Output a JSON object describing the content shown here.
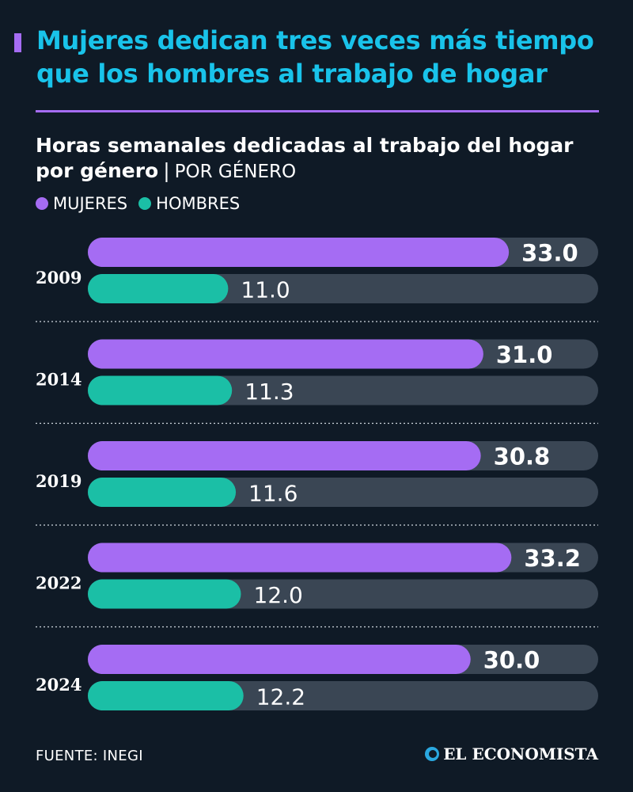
{
  "header": {
    "title": "Mujeres dedican tres veces más tiempo que los hombres al trabajo de hogar"
  },
  "chart_data": {
    "type": "bar",
    "orientation": "horizontal",
    "title": "Horas semanales dedicadas al trabajo del hogar por género",
    "subtitle_tag": "POR GÉNERO",
    "categories": [
      "2009",
      "2014",
      "2019",
      "2022",
      "2024"
    ],
    "series": [
      {
        "name": "MUJERES",
        "color": "#a56cf3",
        "values": [
          33.0,
          31.0,
          30.8,
          33.2,
          30.0
        ]
      },
      {
        "name": "HOMBRES",
        "color": "#1bbfa6",
        "values": [
          11.0,
          11.3,
          11.6,
          12.0,
          12.2
        ]
      }
    ],
    "xlim": [
      0,
      40
    ],
    "track_color": "#3a4654",
    "grid": false,
    "legend_position": "top-left"
  },
  "footer": {
    "source": "FUENTE: INEGI",
    "brand": "EL ECONOMISTA"
  }
}
